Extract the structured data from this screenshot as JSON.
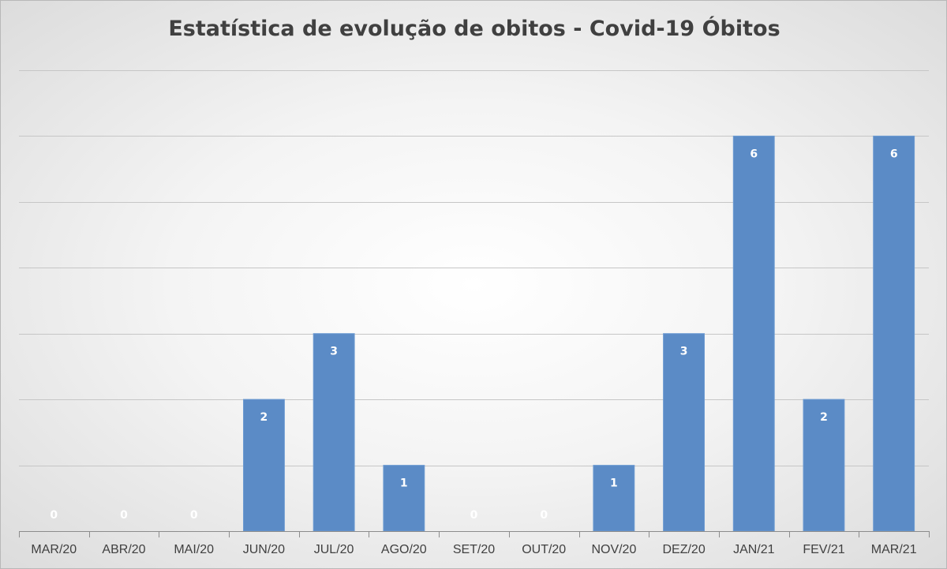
{
  "chart_data": {
    "type": "bar",
    "title": "Estatística de evolução de obitos - Covid-19 Óbitos",
    "categories": [
      "MAR/20",
      "ABR/20",
      "MAI/20",
      "JUN/20",
      "JUL/20",
      "AGO/20",
      "SET/20",
      "OUT/20",
      "NOV/20",
      "DEZ/20",
      "JAN/21",
      "FEV/21",
      "MAR/21"
    ],
    "values": [
      0,
      0,
      0,
      2,
      3,
      1,
      0,
      0,
      1,
      3,
      6,
      2,
      6
    ],
    "xlabel": "",
    "ylabel": "",
    "ylim": [
      0,
      7
    ],
    "grid": true,
    "data_labels": true,
    "bar_color": "#5b8bc6",
    "label_color": "#ffffff",
    "title_color": "#404040"
  }
}
